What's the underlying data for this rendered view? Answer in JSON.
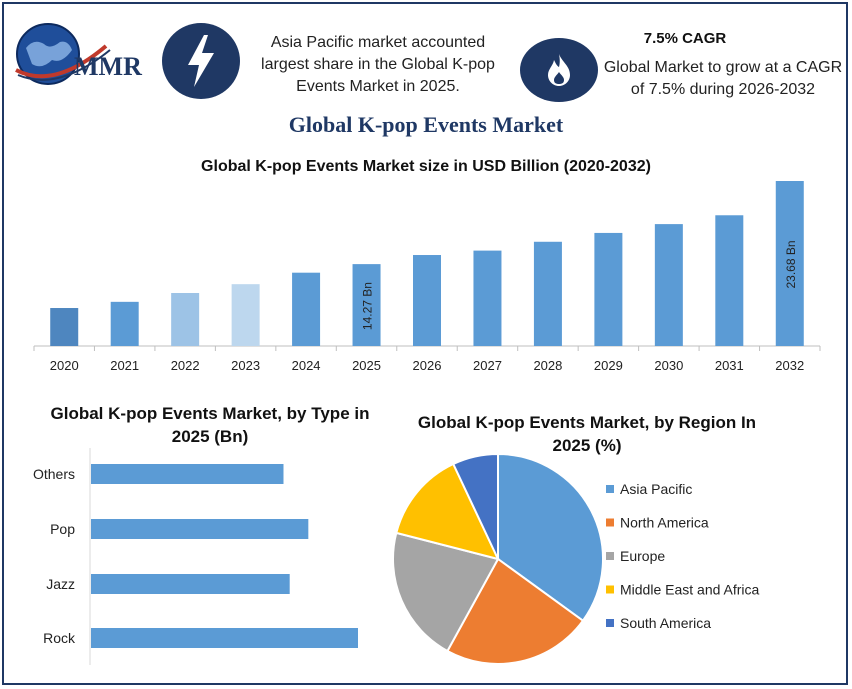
{
  "header": {
    "logo_text": "MMR",
    "info1": "Asia Pacific market accounted largest share in the Global K-pop Events Market in 2025.",
    "cagr_title": "7.5% CAGR",
    "info2": "Global Market to grow at a CAGR of 7.5% during 2026-2032",
    "main_title": "Global K-pop Events Market",
    "icons": [
      "lightning-bolt-icon",
      "flame-icon"
    ]
  },
  "colors": {
    "navy": "#1f3864",
    "bar_blue": "#5b9bd5",
    "bar_2020": "#4e86bf",
    "bar_2022": "#9dc3e6",
    "bar_2023": "#bdd7ee"
  },
  "chart_data": [
    {
      "type": "bar",
      "title": "Global K-pop Events Market size in USD Billion (2020-2032)",
      "categories": [
        "2020",
        "2021",
        "2022",
        "2023",
        "2024",
        "2025",
        "2026",
        "2027",
        "2028",
        "2029",
        "2030",
        "2031",
        "2032"
      ],
      "values": [
        9.3,
        10.0,
        11.0,
        12.0,
        13.3,
        14.27,
        15.3,
        15.8,
        16.8,
        17.8,
        18.8,
        19.8,
        23.68
      ],
      "data_labels": {
        "2025": "14.27 Bn",
        "2032": "23.68 Bn"
      },
      "ylim": [
        5,
        23.68
      ],
      "grid": false
    },
    {
      "type": "bar",
      "orientation": "horizontal",
      "title": "Global K-pop Events Market, by Type in 2025 (Bn)",
      "categories": [
        "Others",
        "Pop",
        "Jazz",
        "Rock"
      ],
      "values": [
        3.1,
        3.5,
        3.2,
        4.3
      ],
      "xlim": [
        0,
        4.3
      ]
    },
    {
      "type": "pie",
      "title": "Global K-pop Events Market, by Region In 2025 (%)",
      "labels": [
        "Asia Pacific",
        "North America",
        "Europe",
        "Middle East and Africa",
        "South America"
      ],
      "values": [
        35,
        23,
        21,
        14,
        7
      ],
      "colors": [
        "#5b9bd5",
        "#ed7d31",
        "#a5a5a5",
        "#ffc000",
        "#4472c4"
      ],
      "legend": "right"
    }
  ]
}
